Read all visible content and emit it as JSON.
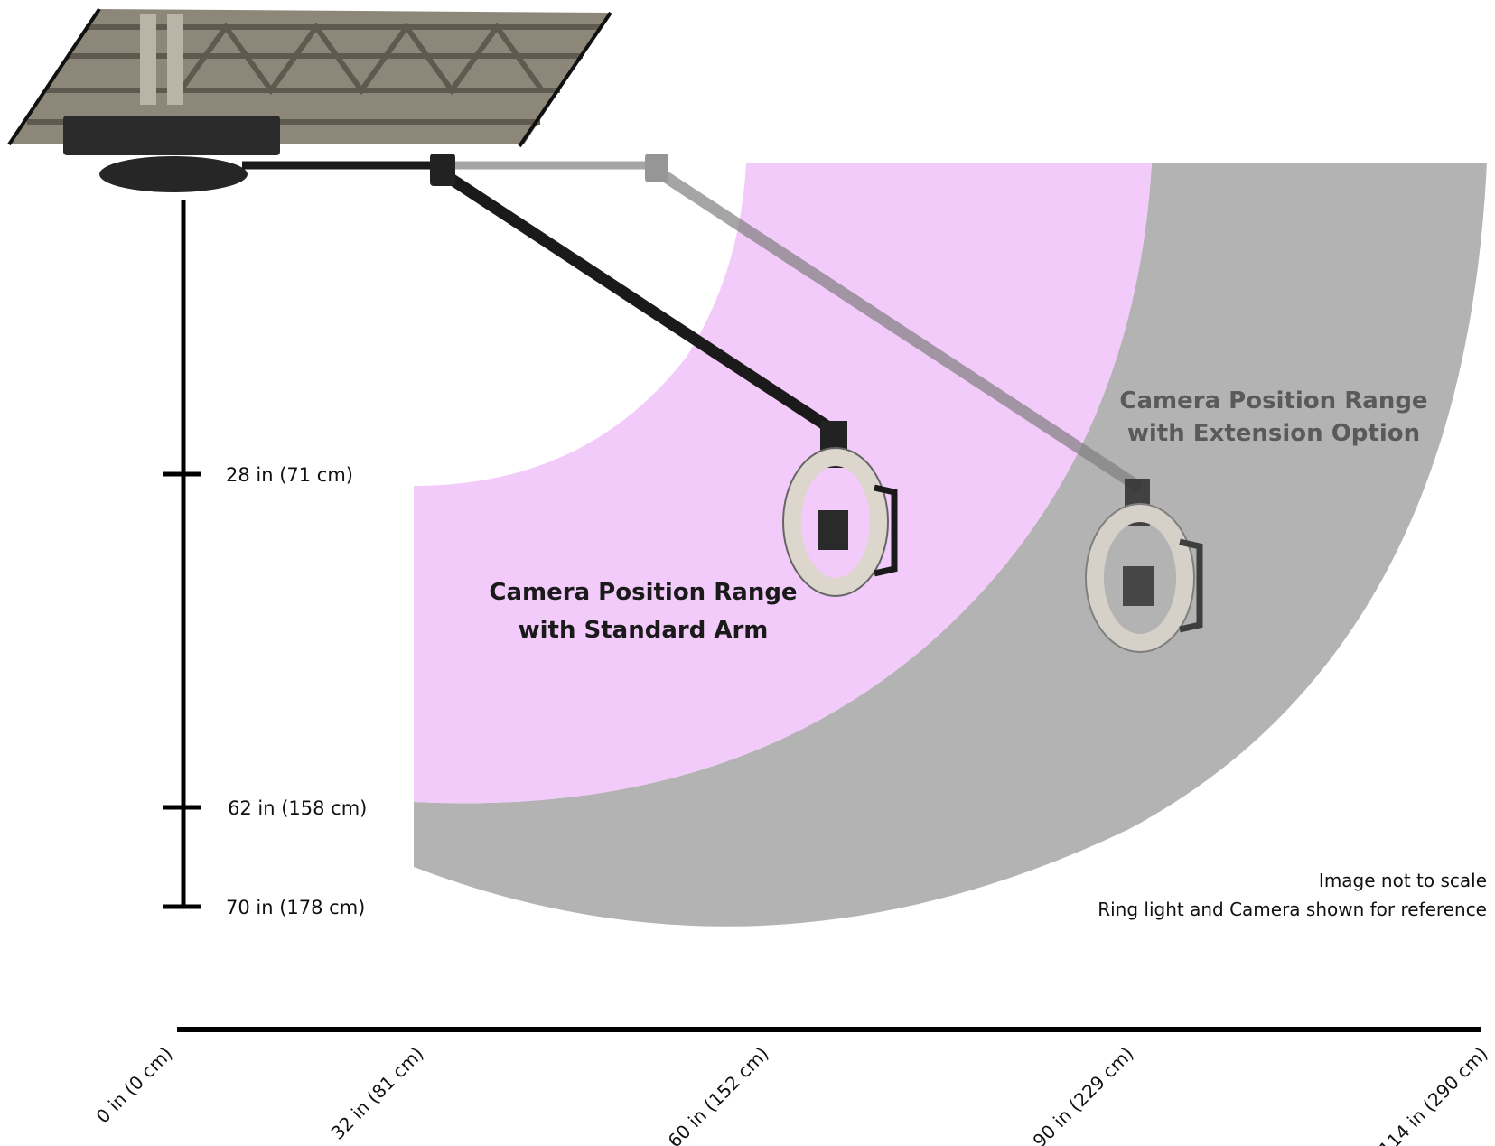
{
  "colors": {
    "standard_range": "#f3cbfb",
    "extension_range": "#b3b3b3",
    "axis": "#000000",
    "arm": "#1a1a1a",
    "arm_ghost": "#7f7f7f",
    "truss": "#8c8778",
    "ring": "#dcd6cc",
    "standard_label": "#1a1a1a",
    "extension_label": "#5a5a5a"
  },
  "icons": [
    "truss-icon",
    "mount-icon",
    "arm-joint-icon",
    "ring-light-camera-icon"
  ],
  "vertical_axis": {
    "ticks": [
      {
        "label": "28 in (71 cm)"
      },
      {
        "label": "62 in (158 cm)"
      },
      {
        "label": "70 in (178 cm)"
      }
    ]
  },
  "horizontal_axis": {
    "ticks": [
      {
        "label": "0 in (0 cm)"
      },
      {
        "label": "32 in (81 cm)"
      },
      {
        "label": "60 in (152 cm)"
      },
      {
        "label": "90 in (229 cm)"
      },
      {
        "label": "114 in (290 cm)"
      }
    ]
  },
  "ranges": {
    "standard": {
      "line1": "Camera Position Range",
      "line2": "with Standard Arm"
    },
    "extension": {
      "line1": "Camera Position Range",
      "line2": "with Extension Option"
    }
  },
  "notes": {
    "line1": "Image not to scale",
    "line2": "Ring light and Camera shown for reference"
  }
}
